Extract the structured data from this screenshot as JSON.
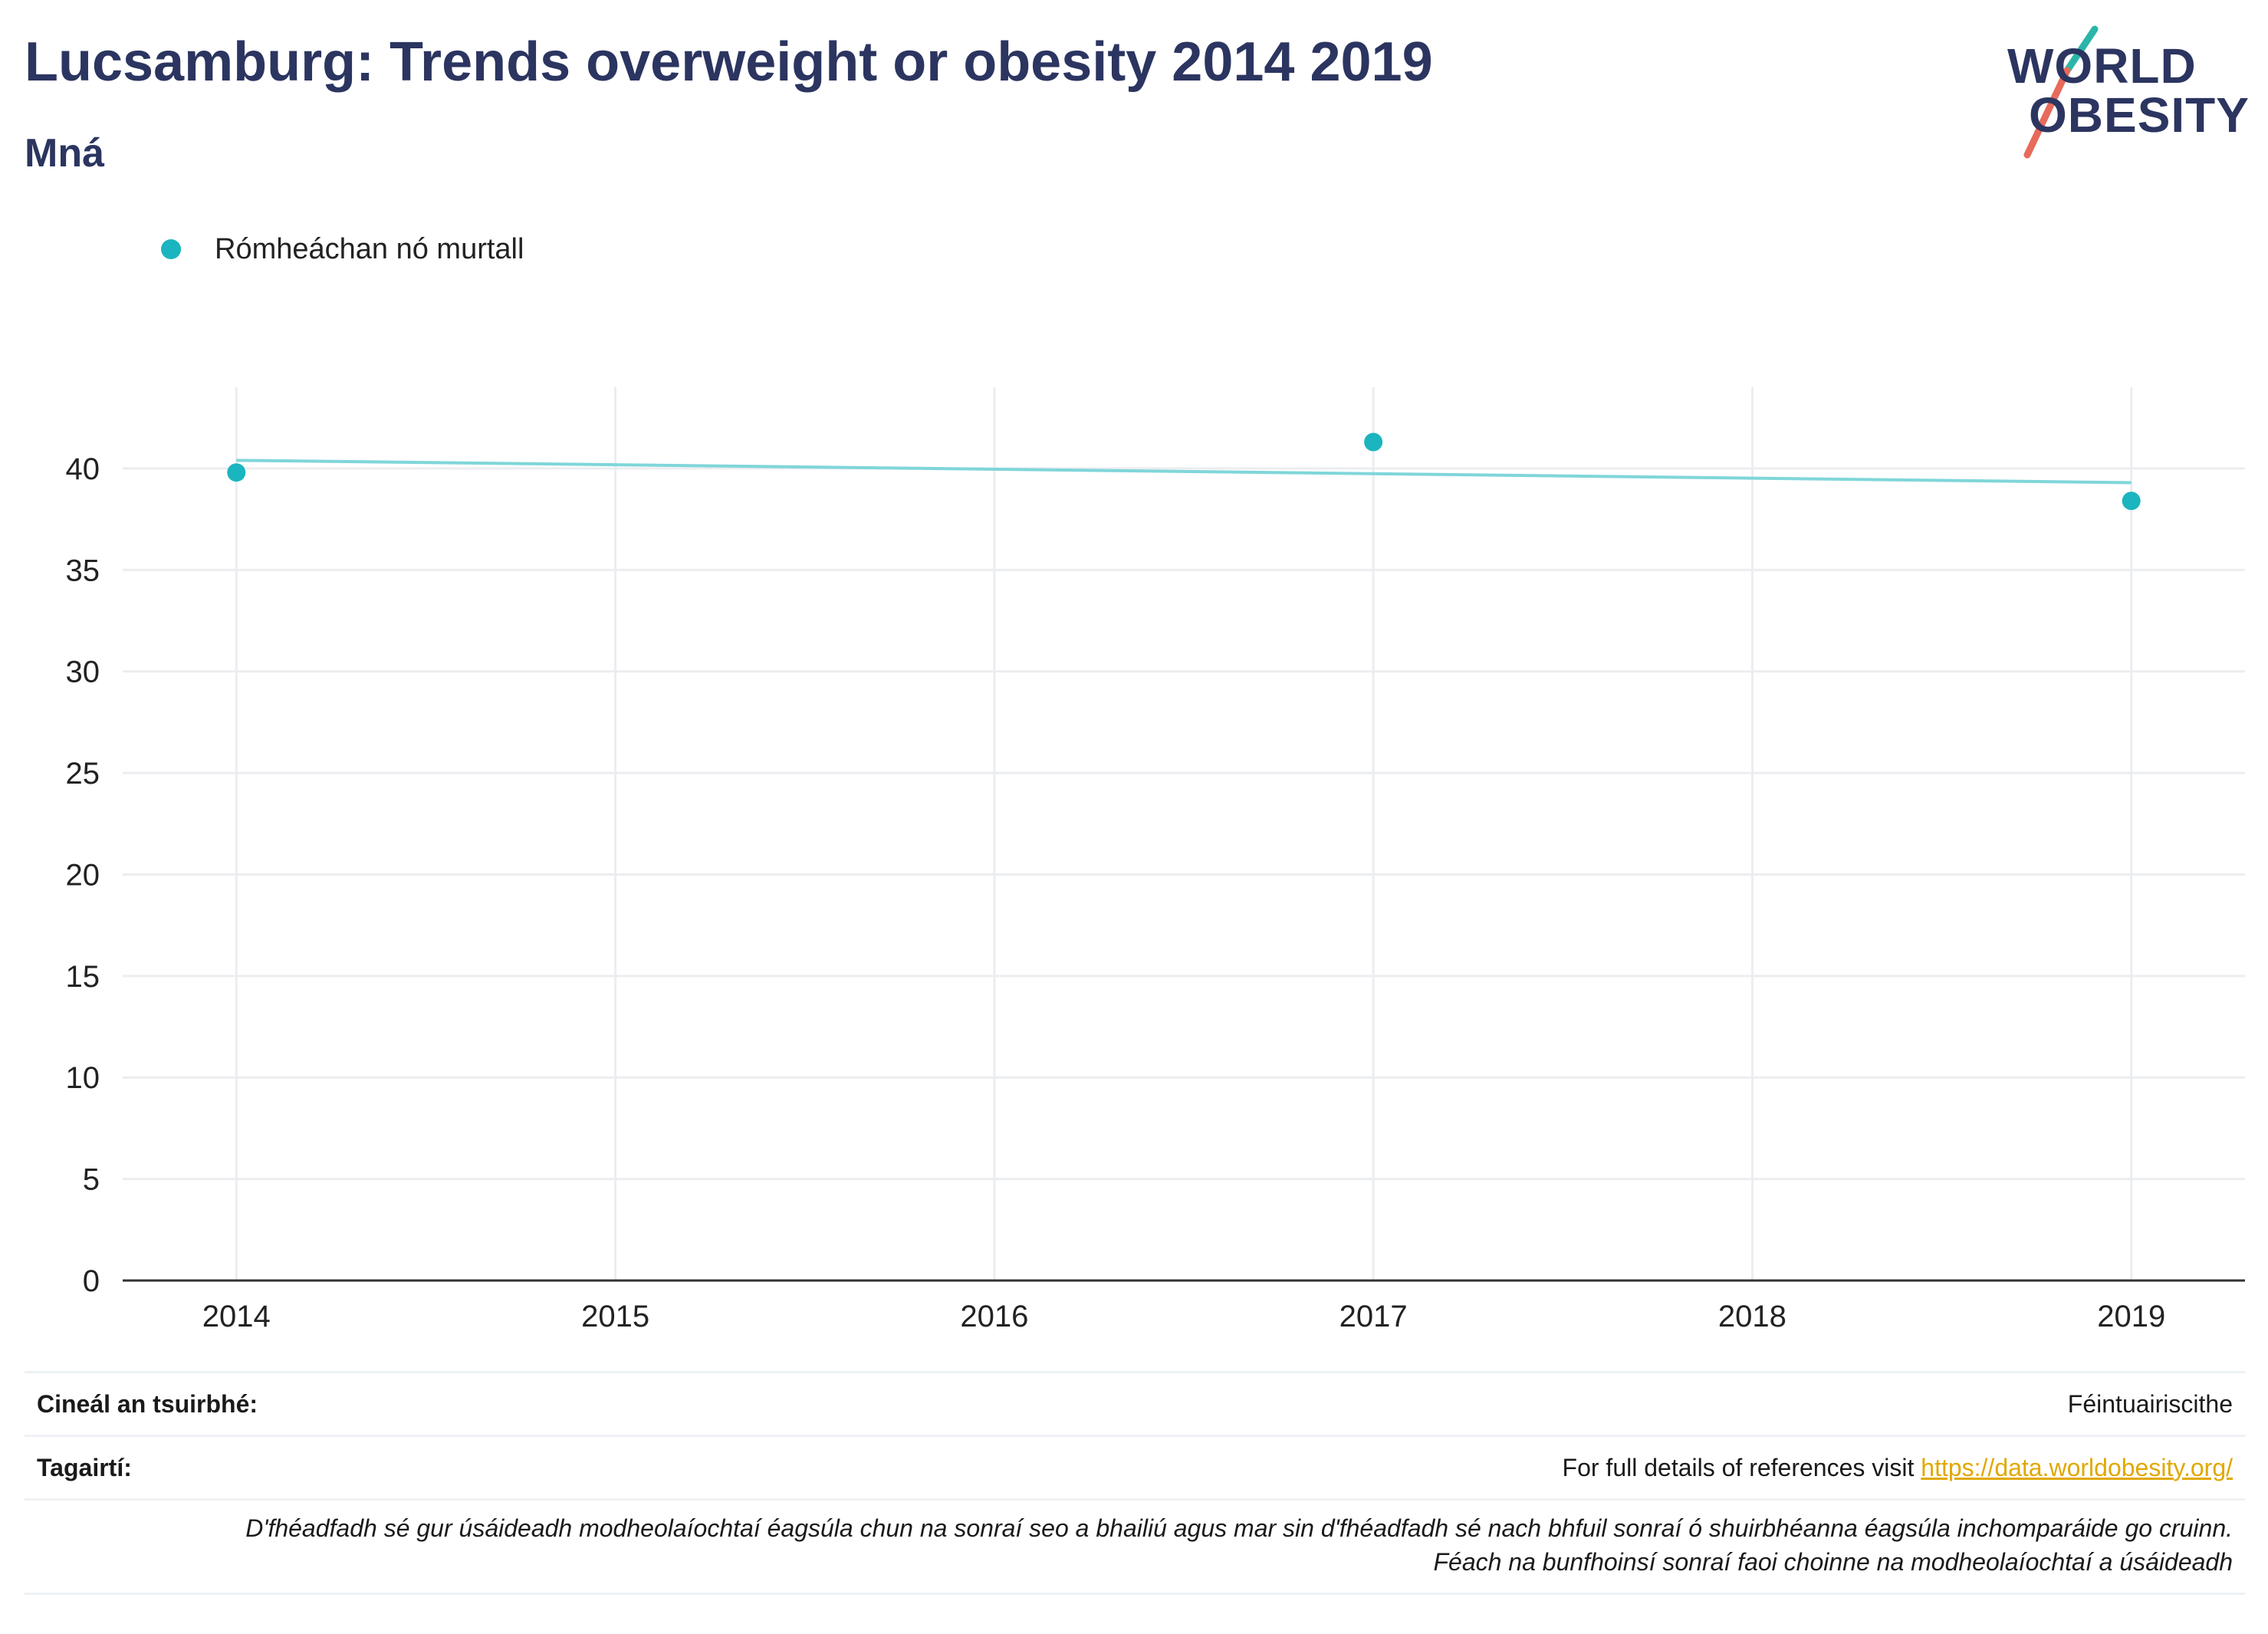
{
  "colors": {
    "series": "#1ab5bf",
    "trend": "#7fd6d9",
    "title": "#2b3560",
    "link": "#e0a800",
    "logo_slash_teal": "#2bb5a9",
    "logo_slash_red": "#e86a5a"
  },
  "header": {
    "title": "Lucsamburg: Trends overweight or obesity 2014 2019",
    "subtitle": "Mná"
  },
  "logo": {
    "line1": "WORLD",
    "line2": "OBESITY"
  },
  "legend": {
    "label": "Rómheáchan nó murtall"
  },
  "chart_data": {
    "type": "scatter",
    "title": "Lucsamburg: Trends overweight or obesity 2014 2019",
    "subtitle": "Mná",
    "x_ticks": [
      "2014",
      "2015",
      "2016",
      "2017",
      "2018",
      "2019"
    ],
    "y_ticks": [
      0,
      5,
      10,
      15,
      20,
      25,
      30,
      35,
      40
    ],
    "xlim": [
      2013.7,
      2019.3
    ],
    "ylim": [
      0,
      44
    ],
    "series": [
      {
        "name": "Rómheáchan nó murtall",
        "x": [
          2014,
          2017,
          2019
        ],
        "y": [
          39.8,
          41.3,
          38.4
        ]
      }
    ],
    "trendline": {
      "x": [
        2014,
        2019
      ],
      "y": [
        40.4,
        39.3
      ]
    },
    "grid": true,
    "legend_position": "top-left"
  },
  "footer": {
    "survey_label": "Cineál an tsuirbhé:",
    "survey_value": "Féintuairiscithe",
    "refs_label": "Tagairtí:",
    "refs_text": "For full details of references visit ",
    "refs_link": "https://data.worldobesity.org/",
    "note_line1": "D'fhéadfadh sé gur úsáideadh modheolaíochtaí éagsúla chun na sonraí seo a bhailiú agus mar sin d'fhéadfadh sé nach bhfuil sonraí ó shuirbhéanna éagsúla inchomparáide go cruinn.",
    "note_line2": "Féach na bunfhoinsí sonraí faoi choinne na modheolaíochtaí a úsáideadh"
  }
}
